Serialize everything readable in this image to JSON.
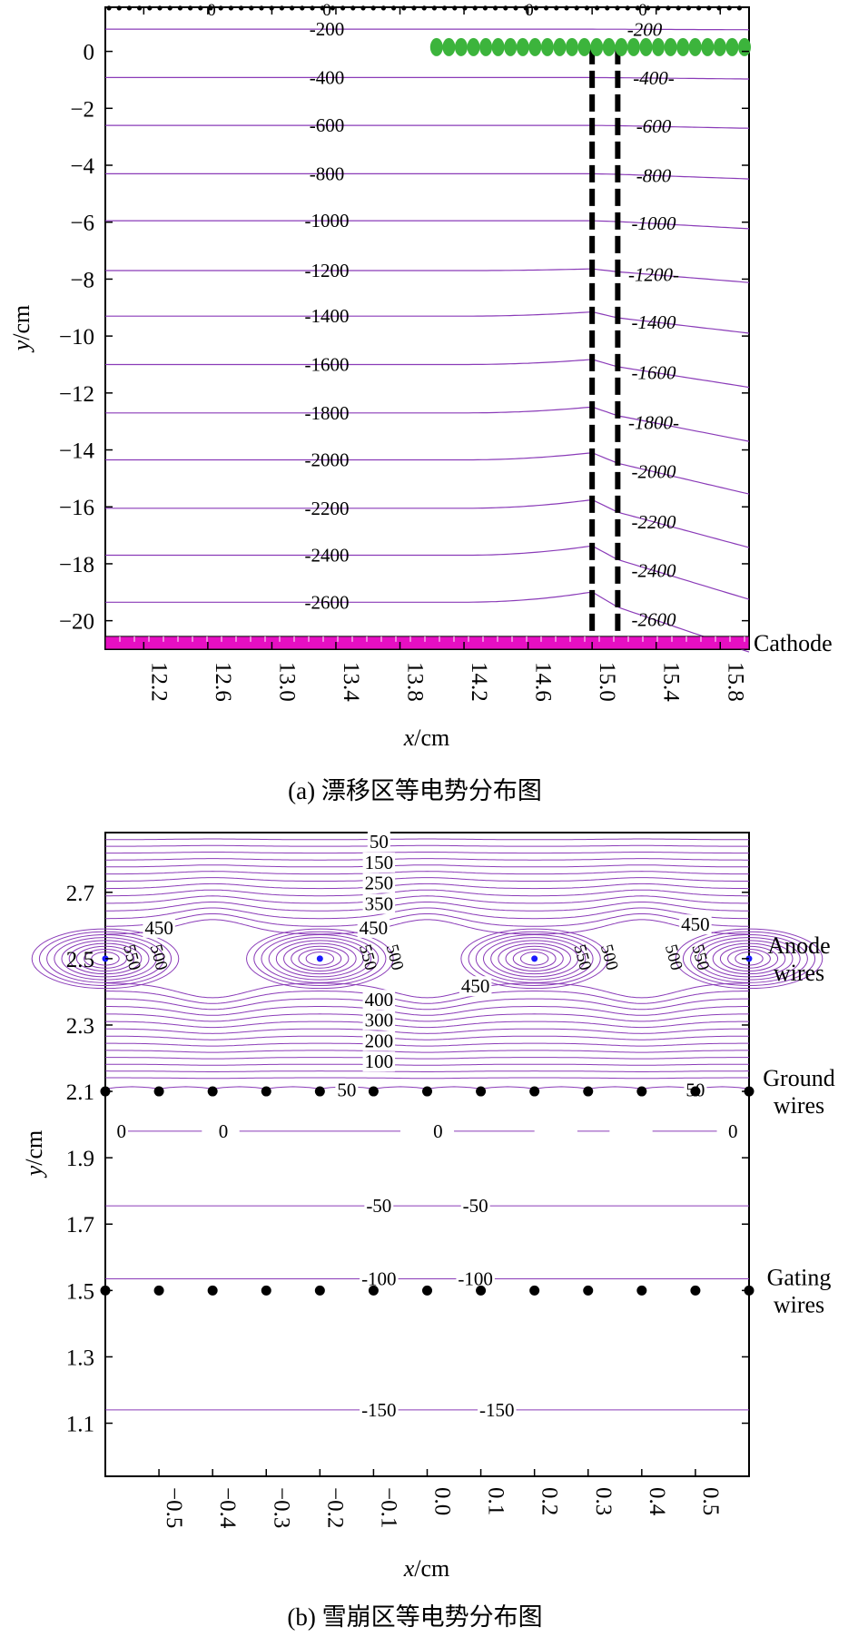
{
  "chart_data": [
    {
      "type": "contour",
      "caption": "(a) 漂移区等电势分布图",
      "xlabel_var": "x",
      "xlabel_unit": "/cm",
      "ylabel_var": "y",
      "ylabel_unit": "/cm",
      "xlim": [
        11.96,
        15.98
      ],
      "ylim": [
        -21.0,
        1.55
      ],
      "x_ticks": [
        "12.2",
        "12.6",
        "13.0",
        "13.4",
        "13.8",
        "14.2",
        "14.6",
        "15.0",
        "15.4",
        "15.8"
      ],
      "x_tick_values": [
        12.2,
        12.6,
        13.0,
        13.4,
        13.8,
        14.2,
        14.6,
        15.0,
        15.4,
        15.8
      ],
      "y_ticks": [
        "0",
        "−2",
        "−4",
        "−6",
        "−8",
        "−10",
        "−12",
        "−14",
        "−16",
        "−18",
        "−20"
      ],
      "y_tick_values": [
        0,
        -2,
        -4,
        -6,
        -8,
        -10,
        -12,
        -14,
        -16,
        -18,
        -20
      ],
      "cathode_label": "Cathode",
      "cathode_color": "#e60fc2",
      "contour_color": "#8a3bb8",
      "contours": [
        {
          "level": 0,
          "y": 1.52
        },
        {
          "level": -200,
          "y": 0.78
        },
        {
          "level": -400,
          "y": -0.92
        },
        {
          "level": -600,
          "y": -2.6
        },
        {
          "level": -800,
          "y": -4.3
        },
        {
          "level": -1000,
          "y": -5.95
        },
        {
          "level": -1200,
          "y": -7.7
        },
        {
          "level": -1400,
          "y": -9.3
        },
        {
          "level": -1600,
          "y": -11.0
        },
        {
          "level": -1800,
          "y": -12.7
        },
        {
          "level": -2000,
          "y": -14.35
        },
        {
          "level": -2200,
          "y": -16.05
        },
        {
          "level": -2400,
          "y": -17.7
        },
        {
          "level": -2600,
          "y": -19.35
        }
      ],
      "left_labels": [
        "-200",
        "-400",
        "-600",
        "-800",
        "-1000",
        "-1200",
        "-1400",
        "-1600",
        "-1800",
        "-2000",
        "-2200",
        "-2400",
        "-2600"
      ],
      "right_labels": [
        "-200",
        "-400-",
        "-600",
        "-800",
        "-1000",
        "-1200-",
        "-1400",
        "-1600",
        "-1800-",
        "-2000",
        "-2200",
        "-2400",
        "-2600"
      ],
      "top_labels": [
        "0",
        "0",
        "0",
        "0"
      ],
      "electrodes": {
        "color": "#3cb43c",
        "x_start": 14.0,
        "x_end": 15.98,
        "y": 0.15
      },
      "dashed_lines_x": [
        15.0,
        15.16
      ],
      "dashed_line_top_y": 0.15,
      "right_tilts": [
        0.0,
        -0.02,
        -0.05,
        -0.1,
        -0.18,
        -0.28,
        -0.42,
        -0.6,
        -0.8,
        -1.0,
        -1.2,
        -1.38,
        -1.55,
        -1.75
      ],
      "left_bump": [
        0.0,
        0.0,
        0.0,
        0.0,
        0.0,
        0.0,
        0.1,
        0.25,
        0.3,
        0.35,
        0.42,
        0.5,
        0.55,
        0.6
      ]
    },
    {
      "type": "contour",
      "caption": "(b) 雪崩区等电势分布图",
      "xlabel_var": "x",
      "xlabel_unit": "/cm",
      "ylabel_var": "y",
      "ylabel_unit": "/cm",
      "xlim": [
        -0.6,
        0.6
      ],
      "ylim": [
        0.94,
        2.88
      ],
      "x_ticks": [
        "−0.5",
        "−0.4",
        "−0.3",
        "−0.2",
        "−0.1",
        "0.0",
        "0.1",
        "0.2",
        "0.3",
        "0.4",
        "0.5"
      ],
      "x_tick_values": [
        -0.5,
        -0.4,
        -0.3,
        -0.2,
        -0.1,
        0.0,
        0.1,
        0.2,
        0.3,
        0.4,
        0.5
      ],
      "y_ticks": [
        "1.1",
        "1.3",
        "1.5",
        "1.7",
        "1.9",
        "2.1",
        "2.3",
        "2.5",
        "2.7"
      ],
      "y_tick_values": [
        1.1,
        1.3,
        1.5,
        1.7,
        1.9,
        2.1,
        2.3,
        2.5,
        2.7
      ],
      "wire_labels": {
        "anode": [
          "Anode",
          "wires"
        ],
        "ground": [
          "Ground",
          "wires"
        ],
        "gating": [
          "Gating",
          "wires"
        ]
      },
      "anode_wires_x": [
        -0.6,
        -0.2,
        0.2,
        0.6
      ],
      "anode_y": 2.5,
      "ground_wires_y": 2.1,
      "gating_wires_y": 1.5,
      "wire_x": [
        -0.6,
        -0.5,
        -0.4,
        -0.3,
        -0.2,
        -0.1,
        0.0,
        0.1,
        0.2,
        0.3,
        0.4,
        0.5,
        0.6
      ],
      "contour_color": "#8a3bb8",
      "upper_levels_y": [
        2.86,
        2.84,
        2.82,
        2.8,
        2.78,
        2.76,
        2.74,
        2.72,
        2.7,
        2.68,
        2.66,
        2.64,
        2.62,
        2.6
      ],
      "lower_levels_y": [
        2.4,
        2.38,
        2.36,
        2.34,
        2.32,
        2.3,
        2.28,
        2.26,
        2.24,
        2.22,
        2.2,
        2.18,
        2.16,
        2.14
      ],
      "flat_lines": [
        {
          "level": -50,
          "y": 1.755
        },
        {
          "level": -100,
          "y": 1.535
        },
        {
          "level": -150,
          "y": 1.14
        }
      ],
      "zero_line_y": 1.98,
      "labels": [
        {
          "t": "50",
          "x": -0.09,
          "y": 2.853
        },
        {
          "t": "150",
          "x": -0.09,
          "y": 2.79
        },
        {
          "t": "250",
          "x": -0.09,
          "y": 2.728
        },
        {
          "t": "350",
          "x": -0.09,
          "y": 2.665
        },
        {
          "t": "450",
          "x": -0.1,
          "y": 2.593
        },
        {
          "t": "450",
          "x": -0.5,
          "y": 2.593
        },
        {
          "t": "450",
          "x": 0.5,
          "y": 2.603
        },
        {
          "t": "450",
          "x": 0.09,
          "y": 2.417
        },
        {
          "t": "400",
          "x": -0.09,
          "y": 2.376
        },
        {
          "t": "300",
          "x": -0.09,
          "y": 2.315
        },
        {
          "t": "200",
          "x": -0.09,
          "y": 2.252
        },
        {
          "t": "100",
          "x": -0.09,
          "y": 2.19
        },
        {
          "t": "50",
          "x": -0.15,
          "y": 2.104
        },
        {
          "t": "50",
          "x": 0.5,
          "y": 2.104
        },
        {
          "t": "0",
          "x": -0.57,
          "y": 1.98
        },
        {
          "t": "0",
          "x": -0.38,
          "y": 1.98
        },
        {
          "t": "0",
          "x": 0.02,
          "y": 1.98
        },
        {
          "t": "0",
          "x": 0.57,
          "y": 1.98
        },
        {
          "t": "-50",
          "x": -0.09,
          "y": 1.755
        },
        {
          "t": "-50",
          "x": 0.09,
          "y": 1.755
        },
        {
          "t": "-100",
          "x": -0.09,
          "y": 1.535
        },
        {
          "t": "-100",
          "x": 0.09,
          "y": 1.535
        },
        {
          "t": "-150",
          "x": -0.09,
          "y": 1.14
        },
        {
          "t": "-150",
          "x": 0.13,
          "y": 1.14
        }
      ],
      "rotated_labels": [
        {
          "t": "550",
          "x": -0.56,
          "y": 2.5
        },
        {
          "t": "500",
          "x": -0.51,
          "y": 2.5
        },
        {
          "t": "550",
          "x": -0.12,
          "y": 2.5
        },
        {
          "t": "500",
          "x": -0.07,
          "y": 2.5
        },
        {
          "t": "550",
          "x": 0.28,
          "y": 2.5
        },
        {
          "t": "500",
          "x": 0.33,
          "y": 2.5
        },
        {
          "t": "500",
          "x": 0.45,
          "y": 2.5
        },
        {
          "t": "550",
          "x": 0.5,
          "y": 2.5
        }
      ]
    }
  ]
}
